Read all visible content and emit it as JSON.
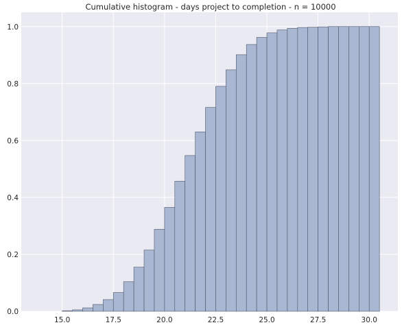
{
  "chart_data": {
    "type": "bar",
    "title": "Cumulative histogram - days project to completion - n = 10000",
    "xlabel": "",
    "ylabel": "",
    "xlim": [
      13.0,
      31.4
    ],
    "ylim": [
      0.0,
      1.05
    ],
    "grid": true,
    "colors": {
      "background": "#eaeaf2",
      "grid": "#ffffff",
      "bar_fill": "#a9b7d3",
      "bar_edge": "#4c5566"
    },
    "bin_width": 0.5,
    "bin_starts": [
      15.0,
      15.5,
      16.0,
      16.5,
      17.0,
      17.5,
      18.0,
      18.5,
      19.0,
      19.5,
      20.0,
      20.5,
      21.0,
      21.5,
      22.0,
      22.5,
      23.0,
      23.5,
      24.0,
      24.5,
      25.0,
      25.5,
      26.0,
      26.5,
      27.0,
      27.5,
      28.0,
      28.5,
      29.0,
      29.5,
      30.0
    ],
    "values": [
      0.002,
      0.005,
      0.012,
      0.024,
      0.041,
      0.066,
      0.104,
      0.155,
      0.215,
      0.288,
      0.365,
      0.457,
      0.547,
      0.63,
      0.716,
      0.79,
      0.848,
      0.901,
      0.937,
      0.962,
      0.978,
      0.988,
      0.994,
      0.997,
      0.998,
      0.999,
      1.0,
      1.0,
      1.0,
      1.0,
      1.0
    ],
    "x_ticks": [
      15.0,
      17.5,
      20.0,
      22.5,
      25.0,
      27.5,
      30.0
    ],
    "x_tick_labels": [
      "15.0",
      "17.5",
      "20.0",
      "22.5",
      "25.0",
      "27.5",
      "30.0"
    ],
    "y_ticks": [
      0.0,
      0.2,
      0.4,
      0.6,
      0.8,
      1.0
    ],
    "y_tick_labels": [
      "0.0",
      "0.2",
      "0.4",
      "0.6",
      "0.8",
      "1.0"
    ]
  }
}
